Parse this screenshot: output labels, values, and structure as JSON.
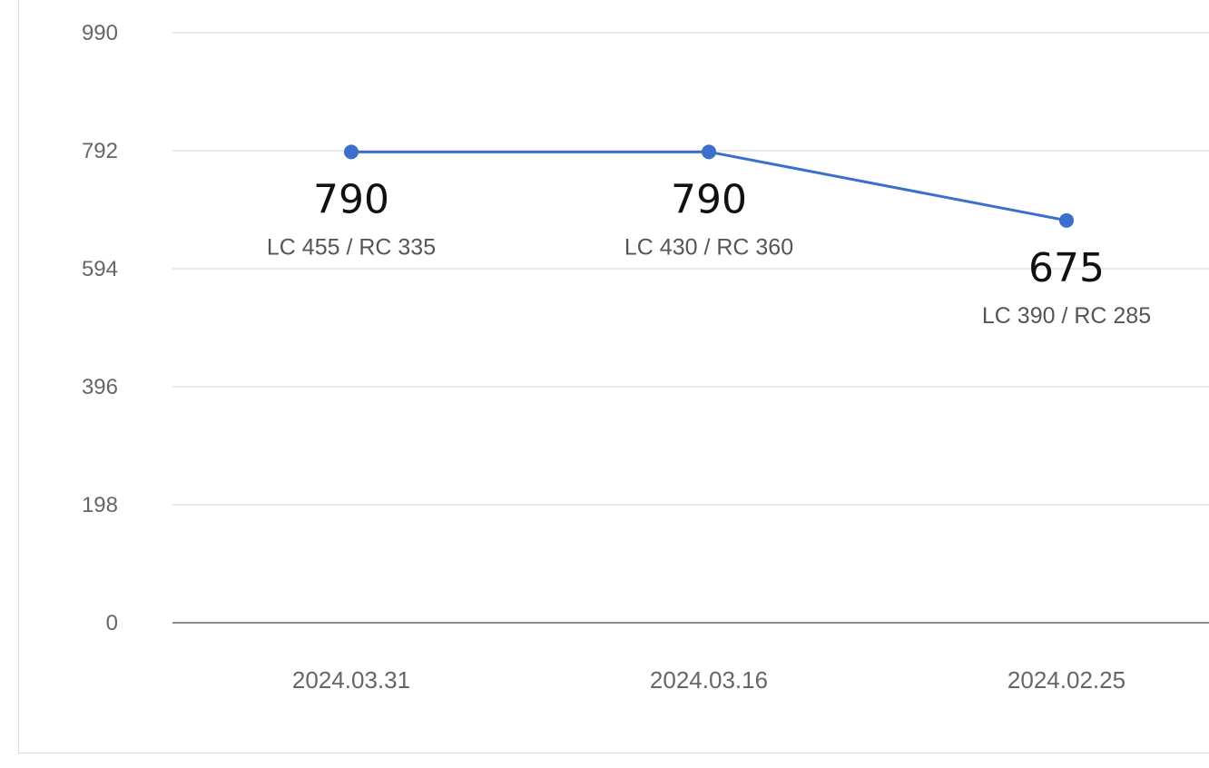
{
  "chart_data": {
    "type": "line",
    "categories": [
      "2024.03.31",
      "2024.03.16",
      "2024.02.25"
    ],
    "values": [
      790,
      790,
      675
    ],
    "sublabels": [
      "LC 455 / RC 335",
      "LC 430 / RC 360",
      "LC 390 / RC 285"
    ],
    "y_ticks": [
      "0",
      "198",
      "396",
      "594",
      "792",
      "990"
    ],
    "ylim": [
      0,
      990
    ],
    "grid": true,
    "line_color": "#3a6fcc",
    "title": "",
    "xlabel": "",
    "ylabel": ""
  }
}
